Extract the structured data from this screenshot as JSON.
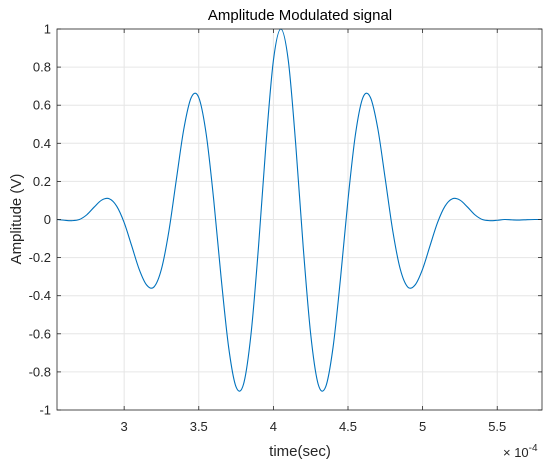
{
  "chart_data": {
    "type": "line",
    "title": "Amplitude Modulated signal",
    "xlabel": "time(sec)",
    "ylabel": "Amplitude (V)",
    "x_exponent_label": "× 10",
    "x_exponent_power": "-4",
    "xlim": [
      2.55,
      5.8
    ],
    "ylim": [
      -1,
      1
    ],
    "x_unit_scale": 0.0001,
    "grid": true,
    "x_ticks": [
      3,
      3.5,
      4,
      4.5,
      5,
      5.5
    ],
    "x_tick_labels": [
      "3",
      "3.5",
      "4",
      "4.5",
      "5",
      "5.5"
    ],
    "y_ticks": [
      -1,
      -0.8,
      -0.6,
      -0.4,
      -0.2,
      0,
      0.2,
      0.4,
      0.6,
      0.8,
      1
    ],
    "y_tick_labels": [
      "-1",
      "-0.8",
      "-0.6",
      "-0.4",
      "-0.2",
      "0",
      "0.2",
      "0.4",
      "0.6",
      "0.8",
      "1"
    ],
    "colors": {
      "line": "#0072BD",
      "grid": "#e6e6e6",
      "axis": "#262626"
    },
    "series": [
      {
        "x": [
          2.55,
          2.6,
          2.65,
          2.7,
          2.75,
          2.8,
          2.85,
          2.9,
          2.95,
          3.0,
          3.05,
          3.1,
          3.15,
          3.2,
          3.25,
          3.3,
          3.35,
          3.4,
          3.45,
          3.5,
          3.55,
          3.6,
          3.65,
          3.7,
          3.75,
          3.8,
          3.85,
          3.9,
          3.95,
          4.0,
          4.05,
          4.1,
          4.15,
          4.2,
          4.25,
          4.3,
          4.35,
          4.4,
          4.45,
          4.5,
          4.55,
          4.6,
          4.65,
          4.7,
          4.75,
          4.8,
          4.85,
          4.9,
          4.95,
          5.0,
          5.05,
          5.1,
          5.15,
          5.2,
          5.25,
          5.3,
          5.35,
          5.4,
          5.45,
          5.5,
          5.55,
          5.6,
          5.65,
          5.7,
          5.75,
          5.8
        ],
        "values": [
          0.0,
          -0.004,
          -0.006,
          0.0,
          0.025,
          0.066,
          0.102,
          0.109,
          0.07,
          -0.016,
          -0.137,
          -0.26,
          -0.343,
          -0.354,
          -0.26,
          -0.06,
          0.211,
          0.476,
          0.641,
          0.64,
          0.447,
          0.104,
          -0.307,
          -0.67,
          -0.879,
          -0.864,
          -0.602,
          -0.146,
          0.391,
          0.834,
          1.0,
          0.834,
          0.391,
          -0.146,
          -0.602,
          -0.864,
          -0.879,
          -0.67,
          -0.307,
          0.104,
          0.447,
          0.64,
          0.641,
          0.476,
          0.211,
          -0.06,
          -0.26,
          -0.354,
          -0.343,
          -0.26,
          -0.137,
          -0.016,
          0.07,
          0.109,
          0.102,
          0.066,
          0.025,
          0.0,
          -0.006,
          -0.004,
          0.0,
          -0.002,
          -0.003,
          -0.001,
          0.0,
          0.0
        ]
      }
    ]
  }
}
